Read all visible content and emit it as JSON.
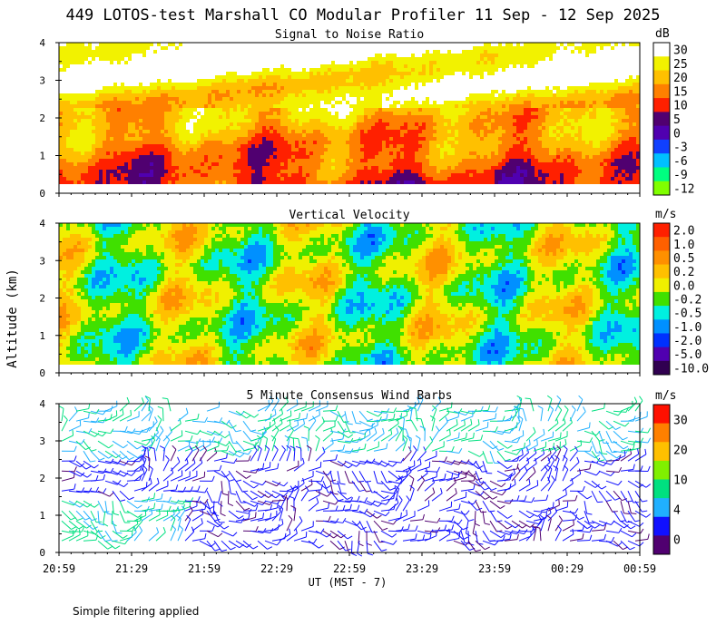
{
  "title": "449 LOTOS-test Marshall CO Modular Profiler 11 Sep - 12 Sep 2025",
  "footnote": "Simple filtering applied",
  "chart_data": [
    {
      "type": "heatmap",
      "title": "Signal to Noise Ratio",
      "ylabel": "Altitude (km)",
      "ylim": [
        0,
        4
      ],
      "yticks": [
        "0",
        "1",
        "2",
        "3",
        "4"
      ],
      "x_ticks": [
        "20:59",
        "21:29",
        "21:59",
        "22:29",
        "22:59",
        "23:29",
        "23:59",
        "00:29",
        "00:59"
      ],
      "colorbar": {
        "unit": "dB",
        "labels": [
          "30",
          "25",
          "20",
          "15",
          "10",
          "5",
          "0",
          "-3",
          "-6",
          "-9",
          "-12"
        ],
        "colors": [
          "#ffffff",
          "#f2f200",
          "#ffc000",
          "#ff8000",
          "#ff2000",
          "#500070",
          "#5000b0",
          "#1040ff",
          "#00c0ff",
          "#00ff80",
          "#80ff00"
        ]
      }
    },
    {
      "type": "heatmap",
      "title": "Vertical Velocity",
      "ylabel": "Altitude (km)",
      "ylim": [
        0,
        4
      ],
      "yticks": [
        "0",
        "1",
        "2",
        "3",
        "4"
      ],
      "x_ticks": [
        "20:59",
        "21:29",
        "21:59",
        "22:29",
        "22:59",
        "23:29",
        "23:59",
        "00:29",
        "00:59"
      ],
      "colorbar": {
        "unit": "m/s",
        "labels": [
          "2.0",
          "1.0",
          "0.5",
          "0.2",
          "0.0",
          "-0.2",
          "-0.5",
          "-1.0",
          "-2.0",
          "-5.0",
          "-10.0"
        ],
        "colors": [
          "#ff2000",
          "#ff6000",
          "#ff9000",
          "#ffc000",
          "#f0f000",
          "#40e000",
          "#00f0e0",
          "#0090ff",
          "#0030ff",
          "#5000b0",
          "#300050"
        ]
      }
    },
    {
      "type": "wind-barbs",
      "title": "5 Minute Consensus Wind Barbs",
      "ylabel": "Altitude (km)",
      "ylim": [
        0,
        4
      ],
      "yticks": [
        "0",
        "1",
        "2",
        "3",
        "4"
      ],
      "x_ticks": [
        "20:59",
        "21:29",
        "21:59",
        "22:29",
        "22:59",
        "23:29",
        "23:59",
        "00:29",
        "00:59"
      ],
      "xlabel": "UT  (MST - 7)",
      "colorbar": {
        "unit": "m/s",
        "labels": [
          "30",
          "20",
          "10",
          "4",
          "0"
        ],
        "colors": [
          "#ff1000",
          "#ff8000",
          "#ffc000",
          "#80f000",
          "#00e080",
          "#20b0ff",
          "#1010ff",
          "#500070"
        ]
      }
    }
  ]
}
